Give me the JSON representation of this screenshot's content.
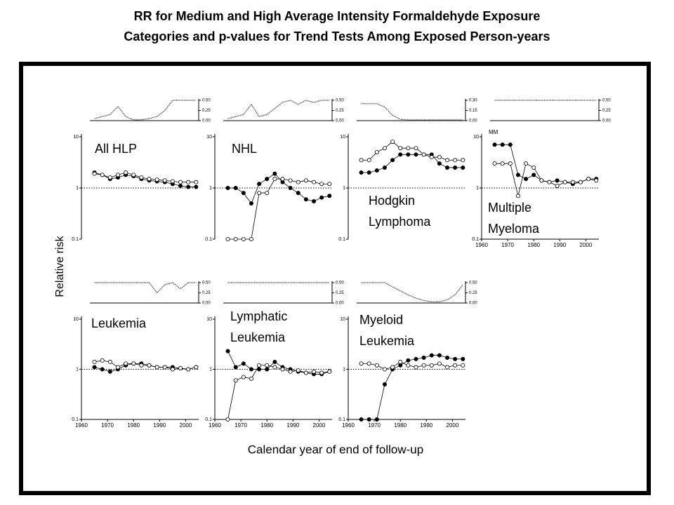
{
  "chart_data": {
    "title": [
      "RR for Medium and High Average Intensity Formaldehyde Exposure",
      "Categories and p-values for Trend Tests Among Exposed Person-years"
    ],
    "ylabel": "Relative risk",
    "xlabel": "Calendar year of end of follow-up",
    "charts": [
      {
        "type": "line",
        "title": [
          "All HLP"
        ],
        "log": true,
        "refline": 1,
        "x": [
          1965,
          1968,
          1971,
          1974,
          1977,
          1980,
          1983,
          1986,
          1989,
          1992,
          1995,
          1998,
          2001,
          2004
        ],
        "xlim": [
          1960,
          2005
        ],
        "ylim": [
          0.1,
          10
        ],
        "yticks": [
          0.1,
          1,
          10
        ],
        "series": [
          {
            "color": "#000000",
            "marker": "filled",
            "values": [
              2.0,
              1.8,
              1.5,
              1.6,
              1.8,
              1.7,
              1.5,
              1.4,
              1.35,
              1.3,
              1.2,
              1.1,
              1.05,
              1.05
            ]
          },
          {
            "color": "#000000",
            "marker": "open",
            "values": [
              1.9,
              1.8,
              1.6,
              1.8,
              2.0,
              1.8,
              1.6,
              1.5,
              1.45,
              1.4,
              1.35,
              1.3,
              1.3,
              1.3
            ]
          }
        ],
        "trend": {
          "ylim": [
            0,
            0.5
          ],
          "yticks": [
            {
              "value": 0,
              "label": "0.00"
            },
            {
              "value": 0.25,
              "label": "0.25"
            },
            {
              "value": 0.5,
              "label": "0.50"
            }
          ],
          "values": [
            0.05,
            0.1,
            0.15,
            0.35,
            0.1,
            0.02,
            0.02,
            0.05,
            0.1,
            0.25,
            0.5,
            0.5,
            0.5,
            0.5
          ]
        }
      },
      {
        "type": "line",
        "title": [
          "NHL"
        ],
        "log": true,
        "refline": 1,
        "x": [
          1965,
          1968,
          1971,
          1974,
          1977,
          1980,
          1983,
          1986,
          1989,
          1992,
          1995,
          1998,
          2001,
          2004
        ],
        "xlim": [
          1960,
          2005
        ],
        "ylim": [
          0.1,
          10
        ],
        "yticks": [
          0.1,
          1,
          10
        ],
        "series": [
          {
            "color": "#000000",
            "marker": "filled",
            "values": [
              1.0,
              1.0,
              0.8,
              0.5,
              1.2,
              1.5,
              1.9,
              1.3,
              1.0,
              0.8,
              0.6,
              0.55,
              0.65,
              0.7
            ]
          },
          {
            "color": "#000000",
            "marker": "open",
            "values": [
              0.1,
              0.1,
              0.1,
              0.1,
              0.8,
              0.8,
              1.5,
              1.5,
              1.4,
              1.3,
              1.4,
              1.3,
              1.2,
              1.2
            ]
          }
        ],
        "trend": {
          "ylim": [
            0,
            0.5
          ],
          "yticks": [
            {
              "value": 0,
              "label": "0.00"
            },
            {
              "value": 0.25,
              "label": "0.25"
            },
            {
              "value": 0.5,
              "label": "0.50"
            }
          ],
          "values": [
            0.05,
            0.1,
            0.15,
            0.4,
            0.1,
            0.15,
            0.3,
            0.45,
            0.5,
            0.4,
            0.5,
            0.45,
            0.5,
            0.5
          ]
        }
      },
      {
        "type": "line",
        "title": [
          "Hodgkin",
          "Lymphoma"
        ],
        "log": true,
        "refline": 1,
        "x": [
          1965,
          1968,
          1971,
          1974,
          1977,
          1980,
          1983,
          1986,
          1989,
          1992,
          1995,
          1998,
          2001,
          2004
        ],
        "xlim": [
          1960,
          2005
        ],
        "ylim": [
          0.1,
          10
        ],
        "yticks": [
          0.1,
          1,
          10
        ],
        "series": [
          {
            "color": "#000000",
            "marker": "filled",
            "values": [
              2,
              2,
              2.2,
              2.5,
              3.5,
              4.5,
              4.5,
              4.5,
              4.5,
              4.5,
              3,
              2.5,
              2.5,
              2.5
            ]
          },
          {
            "color": "#000000",
            "marker": "open",
            "values": [
              3.5,
              3.5,
              5,
              6,
              8,
              6,
              6,
              6,
              4.5,
              4,
              4,
              3.5,
              3.5,
              3.5
            ]
          }
        ],
        "trend": {
          "ylim": [
            0,
            0.3
          ],
          "yticks": [
            {
              "value": 0,
              "label": "0.00"
            },
            {
              "value": 0.15,
              "label": "0.15"
            },
            {
              "value": 0.3,
              "label": "0.30"
            }
          ],
          "values": [
            0.25,
            0.25,
            0.25,
            0.2,
            0.08,
            0.02,
            0.01,
            0.01,
            0.01,
            0.01,
            0.01,
            0.01,
            0.01,
            0.01
          ]
        }
      },
      {
        "type": "line",
        "title": [
          "Multiple",
          "Myeloma"
        ],
        "annotation": "MM",
        "log": true,
        "refline": 1,
        "x": [
          1965,
          1968,
          1971,
          1974,
          1977,
          1980,
          1983,
          1986,
          1989,
          1992,
          1995,
          1998,
          2001,
          2004
        ],
        "xlim": [
          1960,
          2005
        ],
        "ylim": [
          0.1,
          10
        ],
        "yticks": [
          0.1,
          1,
          10
        ],
        "xticks": [
          1960,
          1970,
          1980,
          1990,
          2000
        ],
        "series": [
          {
            "color": "#000000",
            "marker": "filled",
            "values": [
              7,
              7,
              7,
              1.8,
              1.5,
              1.8,
              1.4,
              1.3,
              1.4,
              1.3,
              1.2,
              1.3,
              1.5,
              1.5
            ]
          },
          {
            "color": "#000000",
            "marker": "open",
            "values": [
              3,
              3,
              3,
              0.7,
              3,
              2.5,
              1.4,
              1.3,
              1.1,
              1.3,
              1.3,
              1.3,
              1.5,
              1.4
            ]
          }
        ],
        "trend": {
          "ylim": [
            0,
            0.5
          ],
          "yticks": [
            {
              "value": 0,
              "label": "0.00"
            },
            {
              "value": 0.25,
              "label": "0.25"
            },
            {
              "value": 0.5,
              "label": "0.50"
            }
          ],
          "values": [
            0.5,
            0.5,
            0.5,
            0.5,
            0.5,
            0.5,
            0.5,
            0.5,
            0.5,
            0.5,
            0.5,
            0.5,
            0.5,
            0.5
          ]
        }
      },
      {
        "type": "line",
        "title": [
          "Leukemia"
        ],
        "log": true,
        "refline": 1,
        "x": [
          1965,
          1968,
          1971,
          1974,
          1977,
          1980,
          1983,
          1986,
          1989,
          1992,
          1995,
          1998,
          2001,
          2004
        ],
        "xlim": [
          1960,
          2005
        ],
        "ylim": [
          0.1,
          10
        ],
        "yticks": [
          0.1,
          1,
          10
        ],
        "xticks": [
          1960,
          1970,
          1980,
          1990,
          2000
        ],
        "series": [
          {
            "color": "#000000",
            "marker": "filled",
            "values": [
              1.1,
              1.0,
              0.9,
              1.0,
              1.2,
              1.3,
              1.3,
              1.2,
              1.1,
              1.1,
              1.1,
              1.05,
              1.0,
              1.1
            ]
          },
          {
            "color": "#000000",
            "marker": "open",
            "values": [
              1.4,
              1.5,
              1.4,
              1.1,
              1.3,
              1.3,
              1.2,
              1.2,
              1.1,
              1.1,
              1.0,
              1.05,
              1.0,
              1.1
            ]
          }
        ],
        "trend": {
          "ylim": [
            0,
            0.5
          ],
          "yticks": [
            {
              "value": 0,
              "label": "0.00"
            },
            {
              "value": 0.25,
              "label": "0.25"
            },
            {
              "value": 0.5,
              "label": "0.50"
            }
          ],
          "values": [
            0.5,
            0.5,
            0.5,
            0.5,
            0.5,
            0.5,
            0.5,
            0.5,
            0.25,
            0.45,
            0.5,
            0.35,
            0.5,
            0.5
          ]
        }
      },
      {
        "type": "line",
        "title": [
          "Lymphatic",
          "Leukemia"
        ],
        "log": true,
        "refline": 1,
        "x": [
          1965,
          1968,
          1971,
          1974,
          1977,
          1980,
          1983,
          1986,
          1989,
          1992,
          1995,
          1998,
          2001,
          2004
        ],
        "xlim": [
          1960,
          2005
        ],
        "ylim": [
          0.1,
          10
        ],
        "yticks": [
          0.1,
          1,
          10
        ],
        "xticks": [
          1960,
          1970,
          1980,
          1990,
          2000
        ],
        "series": [
          {
            "color": "#000000",
            "marker": "filled",
            "values": [
              2.3,
              1.1,
              1.3,
              1.0,
              1.0,
              1.0,
              1.4,
              1.1,
              1.0,
              0.9,
              0.85,
              0.8,
              0.8,
              0.9
            ]
          },
          {
            "color": "#000000",
            "marker": "open",
            "values": [
              0.1,
              0.6,
              0.7,
              0.65,
              1.2,
              1.2,
              1.1,
              1.0,
              0.9,
              0.95,
              0.85,
              0.9,
              0.85,
              0.9
            ]
          }
        ],
        "trend": {
          "ylim": [
            0,
            0.5
          ],
          "yticks": [
            {
              "value": 0,
              "label": "0.00"
            },
            {
              "value": 0.25,
              "label": "0.25"
            },
            {
              "value": 0.5,
              "label": "0.50"
            }
          ],
          "values": [
            0.5,
            0.5,
            0.5,
            0.5,
            0.5,
            0.5,
            0.5,
            0.5,
            0.5,
            0.5,
            0.5,
            0.5,
            0.5,
            0.5
          ]
        }
      },
      {
        "type": "line",
        "title": [
          "Myeloid",
          "Leukemia"
        ],
        "log": true,
        "refline": 1,
        "x": [
          1965,
          1968,
          1971,
          1974,
          1977,
          1980,
          1983,
          1986,
          1989,
          1992,
          1995,
          1998,
          2001,
          2004
        ],
        "xlim": [
          1960,
          2005
        ],
        "ylim": [
          0.1,
          10
        ],
        "yticks": [
          0.1,
          1,
          10
        ],
        "xticks": [
          1960,
          1970,
          1980,
          1990,
          2000
        ],
        "series": [
          {
            "color": "#000000",
            "marker": "filled",
            "values": [
              0.1,
              0.1,
              0.1,
              0.5,
              1.0,
              1.2,
              1.5,
              1.6,
              1.7,
              1.9,
              1.9,
              1.7,
              1.6,
              1.6
            ]
          },
          {
            "color": "#000000",
            "marker": "open",
            "values": [
              1.3,
              1.3,
              1.2,
              1.0,
              1.1,
              1.4,
              1.2,
              1.1,
              1.2,
              1.2,
              1.3,
              1.1,
              1.2,
              1.2
            ]
          }
        ],
        "trend": {
          "ylim": [
            0,
            0.5
          ],
          "yticks": [
            {
              "value": 0,
              "label": "0.00"
            },
            {
              "value": 0.25,
              "label": "0.25"
            },
            {
              "value": 0.5,
              "label": "0.50"
            }
          ],
          "values": [
            0.5,
            0.5,
            0.5,
            0.5,
            0.4,
            0.3,
            0.2,
            0.12,
            0.06,
            0.03,
            0.03,
            0.08,
            0.2,
            0.45
          ]
        }
      }
    ]
  }
}
